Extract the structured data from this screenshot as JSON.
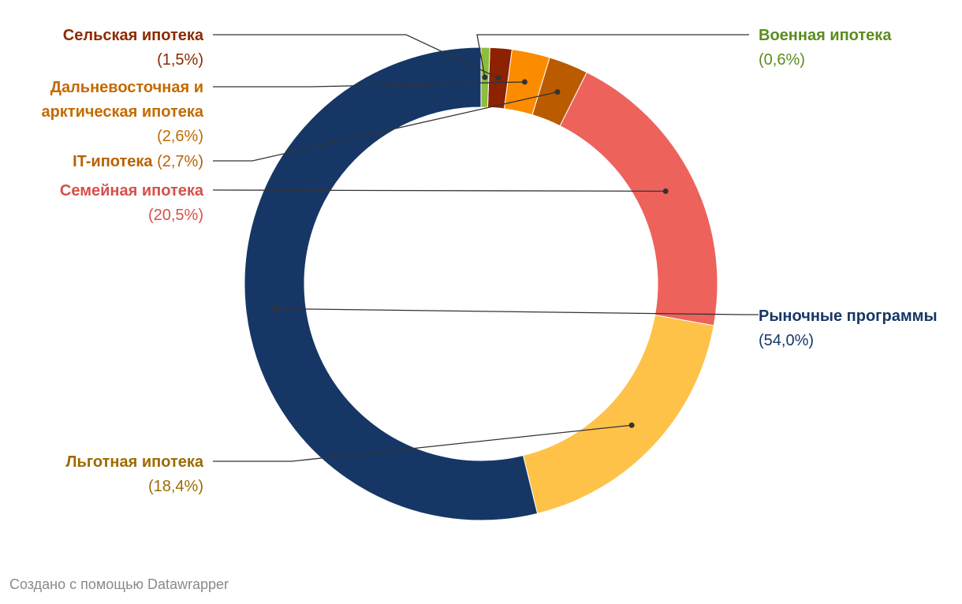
{
  "chart_data": {
    "type": "pie",
    "style": "donut",
    "slices": [
      {
        "label": "Рыночные программы",
        "value": 54.0,
        "value_label": "(54,0%)",
        "color": "#163766"
      },
      {
        "label": "Льготная ипотека",
        "value": 18.4,
        "value_label": "(18,4%)",
        "color": "#fec249"
      },
      {
        "label": "Семейная ипотека",
        "value": 20.5,
        "value_label": "(20,5%)",
        "color": "#ee625c"
      },
      {
        "label": "IT-ипотека",
        "value": 2.7,
        "value_label": "(2,7%)",
        "color": "#bb5b00"
      },
      {
        "label": "Дальневосточная и арктическая ипотека",
        "value": 2.6,
        "value_label": "(2,6%)",
        "color": "#fb8c00"
      },
      {
        "label": "Сельская ипотека",
        "value": 1.5,
        "value_label": "(1,5%)",
        "color": "#8c2200"
      },
      {
        "label": "Военная ипотека",
        "value": 0.6,
        "value_label": "(0,6%)",
        "color": "#8dbd3c"
      }
    ],
    "label_colors": {
      "Рыночные программы": "#163766",
      "Льготная ипотека": "#9c6b00",
      "Семейная ипотека": "#d6504b",
      "IT-ипотека": "#b86200",
      "Дальневосточная и арктическая ипотека": "#c36a00",
      "Сельская ипотека": "#8c2a00",
      "Военная ипотека": "#5a8c1e"
    }
  },
  "footer": {
    "credit": "Создано с помощью Datawrapper"
  }
}
